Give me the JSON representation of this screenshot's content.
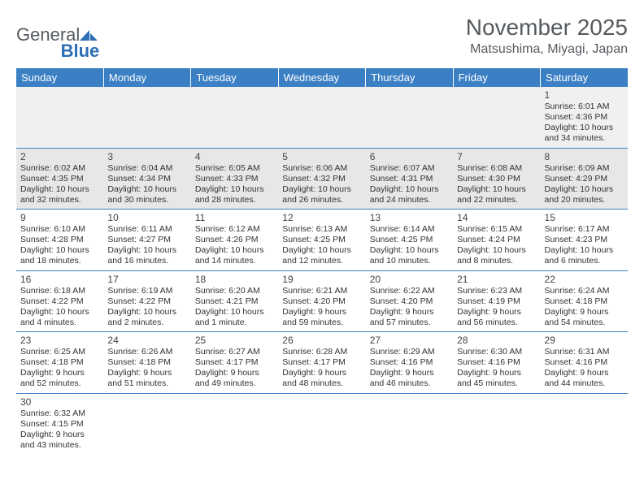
{
  "logo": {
    "part1": "General",
    "part2": "Blue"
  },
  "title": "November 2025",
  "location": "Matsushima, Miyagi, Japan",
  "colors": {
    "header_bg": "#3b7fc4",
    "header_text": "#ffffff",
    "cell_border": "#3b7fc4",
    "dim_bg": "#e7e7e7",
    "text": "#333333",
    "title_text": "#555a5f"
  },
  "day_headers": [
    "Sunday",
    "Monday",
    "Tuesday",
    "Wednesday",
    "Thursday",
    "Friday",
    "Saturday"
  ],
  "weeks": [
    [
      {
        "empty": true
      },
      {
        "empty": true
      },
      {
        "empty": true
      },
      {
        "empty": true
      },
      {
        "empty": true
      },
      {
        "empty": true
      },
      {
        "num": "1",
        "sunrise": "Sunrise: 6:01 AM",
        "sunset": "Sunset: 4:36 PM",
        "daylight": "Daylight: 10 hours and 34 minutes."
      }
    ],
    [
      {
        "num": "2",
        "sunrise": "Sunrise: 6:02 AM",
        "sunset": "Sunset: 4:35 PM",
        "daylight": "Daylight: 10 hours and 32 minutes.",
        "dim": true
      },
      {
        "num": "3",
        "sunrise": "Sunrise: 6:04 AM",
        "sunset": "Sunset: 4:34 PM",
        "daylight": "Daylight: 10 hours and 30 minutes.",
        "dim": true
      },
      {
        "num": "4",
        "sunrise": "Sunrise: 6:05 AM",
        "sunset": "Sunset: 4:33 PM",
        "daylight": "Daylight: 10 hours and 28 minutes.",
        "dim": true
      },
      {
        "num": "5",
        "sunrise": "Sunrise: 6:06 AM",
        "sunset": "Sunset: 4:32 PM",
        "daylight": "Daylight: 10 hours and 26 minutes.",
        "dim": true
      },
      {
        "num": "6",
        "sunrise": "Sunrise: 6:07 AM",
        "sunset": "Sunset: 4:31 PM",
        "daylight": "Daylight: 10 hours and 24 minutes.",
        "dim": true
      },
      {
        "num": "7",
        "sunrise": "Sunrise: 6:08 AM",
        "sunset": "Sunset: 4:30 PM",
        "daylight": "Daylight: 10 hours and 22 minutes.",
        "dim": true
      },
      {
        "num": "8",
        "sunrise": "Sunrise: 6:09 AM",
        "sunset": "Sunset: 4:29 PM",
        "daylight": "Daylight: 10 hours and 20 minutes.",
        "dim": true
      }
    ],
    [
      {
        "num": "9",
        "sunrise": "Sunrise: 6:10 AM",
        "sunset": "Sunset: 4:28 PM",
        "daylight": "Daylight: 10 hours and 18 minutes."
      },
      {
        "num": "10",
        "sunrise": "Sunrise: 6:11 AM",
        "sunset": "Sunset: 4:27 PM",
        "daylight": "Daylight: 10 hours and 16 minutes."
      },
      {
        "num": "11",
        "sunrise": "Sunrise: 6:12 AM",
        "sunset": "Sunset: 4:26 PM",
        "daylight": "Daylight: 10 hours and 14 minutes."
      },
      {
        "num": "12",
        "sunrise": "Sunrise: 6:13 AM",
        "sunset": "Sunset: 4:25 PM",
        "daylight": "Daylight: 10 hours and 12 minutes."
      },
      {
        "num": "13",
        "sunrise": "Sunrise: 6:14 AM",
        "sunset": "Sunset: 4:25 PM",
        "daylight": "Daylight: 10 hours and 10 minutes."
      },
      {
        "num": "14",
        "sunrise": "Sunrise: 6:15 AM",
        "sunset": "Sunset: 4:24 PM",
        "daylight": "Daylight: 10 hours and 8 minutes."
      },
      {
        "num": "15",
        "sunrise": "Sunrise: 6:17 AM",
        "sunset": "Sunset: 4:23 PM",
        "daylight": "Daylight: 10 hours and 6 minutes."
      }
    ],
    [
      {
        "num": "16",
        "sunrise": "Sunrise: 6:18 AM",
        "sunset": "Sunset: 4:22 PM",
        "daylight": "Daylight: 10 hours and 4 minutes."
      },
      {
        "num": "17",
        "sunrise": "Sunrise: 6:19 AM",
        "sunset": "Sunset: 4:22 PM",
        "daylight": "Daylight: 10 hours and 2 minutes."
      },
      {
        "num": "18",
        "sunrise": "Sunrise: 6:20 AM",
        "sunset": "Sunset: 4:21 PM",
        "daylight": "Daylight: 10 hours and 1 minute."
      },
      {
        "num": "19",
        "sunrise": "Sunrise: 6:21 AM",
        "sunset": "Sunset: 4:20 PM",
        "daylight": "Daylight: 9 hours and 59 minutes."
      },
      {
        "num": "20",
        "sunrise": "Sunrise: 6:22 AM",
        "sunset": "Sunset: 4:20 PM",
        "daylight": "Daylight: 9 hours and 57 minutes."
      },
      {
        "num": "21",
        "sunrise": "Sunrise: 6:23 AM",
        "sunset": "Sunset: 4:19 PM",
        "daylight": "Daylight: 9 hours and 56 minutes."
      },
      {
        "num": "22",
        "sunrise": "Sunrise: 6:24 AM",
        "sunset": "Sunset: 4:18 PM",
        "daylight": "Daylight: 9 hours and 54 minutes."
      }
    ],
    [
      {
        "num": "23",
        "sunrise": "Sunrise: 6:25 AM",
        "sunset": "Sunset: 4:18 PM",
        "daylight": "Daylight: 9 hours and 52 minutes."
      },
      {
        "num": "24",
        "sunrise": "Sunrise: 6:26 AM",
        "sunset": "Sunset: 4:18 PM",
        "daylight": "Daylight: 9 hours and 51 minutes."
      },
      {
        "num": "25",
        "sunrise": "Sunrise: 6:27 AM",
        "sunset": "Sunset: 4:17 PM",
        "daylight": "Daylight: 9 hours and 49 minutes."
      },
      {
        "num": "26",
        "sunrise": "Sunrise: 6:28 AM",
        "sunset": "Sunset: 4:17 PM",
        "daylight": "Daylight: 9 hours and 48 minutes."
      },
      {
        "num": "27",
        "sunrise": "Sunrise: 6:29 AM",
        "sunset": "Sunset: 4:16 PM",
        "daylight": "Daylight: 9 hours and 46 minutes."
      },
      {
        "num": "28",
        "sunrise": "Sunrise: 6:30 AM",
        "sunset": "Sunset: 4:16 PM",
        "daylight": "Daylight: 9 hours and 45 minutes."
      },
      {
        "num": "29",
        "sunrise": "Sunrise: 6:31 AM",
        "sunset": "Sunset: 4:16 PM",
        "daylight": "Daylight: 9 hours and 44 minutes."
      }
    ],
    [
      {
        "num": "30",
        "sunrise": "Sunrise: 6:32 AM",
        "sunset": "Sunset: 4:15 PM",
        "daylight": "Daylight: 9 hours and 43 minutes."
      },
      {
        "empty": true
      },
      {
        "empty": true
      },
      {
        "empty": true
      },
      {
        "empty": true
      },
      {
        "empty": true
      },
      {
        "empty": true
      }
    ]
  ]
}
